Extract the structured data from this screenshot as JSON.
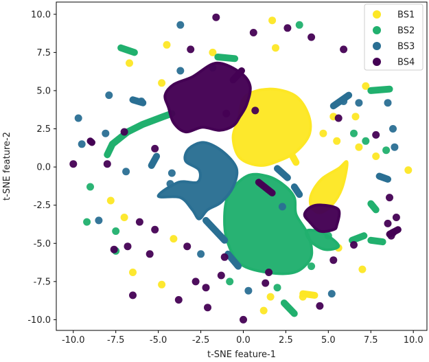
{
  "chart_data": {
    "type": "scatter",
    "title": "",
    "xlabel": "t-SNE feature-1",
    "ylabel": "t-SNE feature-2",
    "xlim": [
      -11.0,
      10.8
    ],
    "ylim": [
      -10.7,
      10.8
    ],
    "xticks": [
      "-10.0",
      "-7.5",
      "-5.0",
      "-2.5",
      "0.0",
      "2.5",
      "5.0",
      "7.5",
      "10.0"
    ],
    "xtick_values": [
      -10,
      -7.5,
      -5,
      -2.5,
      0,
      2.5,
      5,
      7.5,
      10
    ],
    "yticks": [
      "10.0",
      "7.5",
      "5.0",
      "2.5",
      "0.0",
      "-2.5",
      "-5.0",
      "-7.5",
      "-10.0"
    ],
    "ytick_values": [
      10,
      7.5,
      5,
      2.5,
      0,
      -2.5,
      -5,
      -7.5,
      -10
    ],
    "grid": false,
    "legend_position": "top-right",
    "series": [
      {
        "name": "BS1",
        "color": "#fde725",
        "blobs": [
          [
            [
              0.1,
              4.6
            ],
            [
              1.5,
              5.1
            ],
            [
              3.0,
              4.7
            ],
            [
              3.8,
              3.5
            ],
            [
              3.9,
              2.2
            ],
            [
              3.2,
              1.1
            ],
            [
              2.3,
              0.5
            ],
            [
              1.0,
              0.1
            ],
            [
              -0.2,
              0.6
            ],
            [
              -0.6,
              1.9
            ],
            [
              -0.3,
              3.1
            ]
          ],
          [
            [
              4.0,
              -1.8
            ],
            [
              4.6,
              -0.8
            ],
            [
              5.6,
              -0.1
            ],
            [
              6.1,
              0.3
            ],
            [
              5.8,
              -1.4
            ],
            [
              5.2,
              -2.5
            ],
            [
              4.5,
              -3.0
            ],
            [
              4.0,
              -2.6
            ]
          ]
        ],
        "points": [
          [
            1.7,
            9.6
          ],
          [
            -4.5,
            8.0
          ],
          [
            -1.8,
            7.5
          ],
          [
            1.9,
            7.8
          ],
          [
            -6.7,
            6.8
          ],
          [
            -4.8,
            5.5
          ],
          [
            7.2,
            5.3
          ],
          [
            6.6,
            3.3
          ],
          [
            5.3,
            3.3
          ],
          [
            4.7,
            2.2
          ],
          [
            5.5,
            1.7
          ],
          [
            6.8,
            1.3
          ],
          [
            7.8,
            0.7
          ],
          [
            9.7,
            -0.2
          ],
          [
            -7.0,
            -3.3
          ],
          [
            -4.1,
            -4.7
          ],
          [
            -6.5,
            -6.9
          ],
          [
            -4.8,
            -7.7
          ],
          [
            1.6,
            -8.5
          ],
          [
            3.5,
            -8.5
          ],
          [
            1.2,
            -9.4
          ],
          [
            5.6,
            -5.3
          ],
          [
            7.0,
            -6.7
          ],
          [
            -7.8,
            -2.2
          ]
        ],
        "strokes": [
          [
            [
              2.9,
              0.7
            ],
            [
              3.1,
              0.3
            ]
          ],
          [
            [
              3.5,
              -8.3
            ],
            [
              4.2,
              -8.4
            ]
          ]
        ]
      },
      {
        "name": "BS2",
        "color": "#21b06e",
        "blobs": [
          [
            [
              -0.9,
              -1.9
            ],
            [
              0.2,
              -0.6
            ],
            [
              1.4,
              -0.6
            ],
            [
              2.4,
              -1.2
            ],
            [
              3.0,
              -2.0
            ],
            [
              3.1,
              -3.1
            ],
            [
              3.7,
              -4.2
            ],
            [
              4.0,
              -5.2
            ],
            [
              3.9,
              -6.1
            ],
            [
              3.0,
              -6.9
            ],
            [
              1.4,
              -6.9
            ],
            [
              -0.1,
              -6.4
            ],
            [
              -0.8,
              -5.3
            ],
            [
              -1.1,
              -3.8
            ]
          ],
          [
            [
              3.7,
              -4.2
            ],
            [
              4.0,
              -4.9
            ],
            [
              4.8,
              -5.4
            ],
            [
              5.6,
              -5.2
            ],
            [
              5.1,
              -4.6
            ],
            [
              4.4,
              -4.2
            ]
          ]
        ],
        "points": [
          [
            3.3,
            9.3
          ],
          [
            6.5,
            2.2
          ],
          [
            7.2,
            1.7
          ],
          [
            -9.0,
            -1.3
          ],
          [
            -9.2,
            -3.6
          ],
          [
            -7.5,
            -4.2
          ],
          [
            -7.5,
            -5.5
          ],
          [
            4.0,
            -6.5
          ],
          [
            -0.8,
            -7.5
          ],
          [
            2.0,
            -7.9
          ],
          [
            5.0,
            -4.5
          ],
          [
            8.4,
            1.1
          ]
        ],
        "strokes": [
          [
            [
              -8.0,
              0.8
            ],
            [
              -7.7,
              1.5
            ],
            [
              -6.8,
              2.3
            ],
            [
              -5.9,
              2.8
            ],
            [
              -4.7,
              3.3
            ],
            [
              -4.2,
              3.5
            ]
          ],
          [
            [
              -1.5,
              7.2
            ],
            [
              -0.5,
              7.1
            ]
          ],
          [
            [
              -7.2,
              7.8
            ],
            [
              -6.4,
              7.5
            ]
          ],
          [
            [
              7.5,
              5.0
            ],
            [
              8.6,
              5.1
            ]
          ],
          [
            [
              2.4,
              -8.9
            ],
            [
              3.0,
              -9.6
            ]
          ],
          [
            [
              7.5,
              -2.4
            ],
            [
              7.8,
              -2.8
            ]
          ],
          [
            [
              6.4,
              -4.8
            ],
            [
              7.1,
              -4.5
            ]
          ],
          [
            [
              7.5,
              -4.8
            ],
            [
              8.2,
              -4.9
            ]
          ]
        ]
      },
      {
        "name": "BS3",
        "color": "#2a6f93",
        "blobs": [
          [
            [
              -3.2,
              1.2
            ],
            [
              -2.3,
              1.6
            ],
            [
              -1.2,
              1.0
            ],
            [
              -0.4,
              -0.1
            ],
            [
              -0.6,
              -1.3
            ],
            [
              -1.3,
              -2.3
            ],
            [
              -2.1,
              -2.8
            ],
            [
              -2.6,
              -3.4
            ],
            [
              -3.0,
              -2.8
            ],
            [
              -3.7,
              -2.0
            ],
            [
              -5.0,
              -1.9
            ],
            [
              -3.8,
              -1.0
            ],
            [
              -2.7,
              -1.0
            ],
            [
              -2.6,
              -0.2
            ],
            [
              -3.4,
              0.4
            ]
          ]
        ],
        "points": [
          [
            -3.7,
            9.3
          ],
          [
            -1.8,
            6.5
          ],
          [
            -3.7,
            6.3
          ],
          [
            -7.9,
            4.7
          ],
          [
            -9.7,
            3.2
          ],
          [
            -9.5,
            1.5
          ],
          [
            -8.1,
            2.2
          ],
          [
            -6.0,
            4.3
          ],
          [
            5.9,
            4.3
          ],
          [
            6.8,
            4.2
          ],
          [
            8.5,
            4.2
          ],
          [
            8.8,
            2.5
          ],
          [
            8.9,
            1.3
          ],
          [
            -6.9,
            -0.3
          ],
          [
            -8.5,
            -3.5
          ],
          [
            -4.3,
            -1.1
          ],
          [
            -2.5,
            -5.7
          ],
          [
            5.2,
            -8.3
          ],
          [
            -4.2,
            -0.4
          ],
          [
            2.3,
            -2.6
          ],
          [
            0.3,
            -8.1
          ]
        ],
        "strokes": [
          [
            [
              -6.5,
              4.4
            ],
            [
              -5.9,
              4.2
            ]
          ],
          [
            [
              2.0,
              -0.1
            ],
            [
              2.6,
              -0.7
            ]
          ],
          [
            [
              3.0,
              -1.3
            ],
            [
              3.3,
              -1.8
            ]
          ],
          [
            [
              5.3,
              4.0
            ],
            [
              6.2,
              4.7
            ]
          ],
          [
            [
              -2.2,
              -3.5
            ],
            [
              -1.1,
              -4.8
            ]
          ],
          [
            [
              -0.9,
              -5.7
            ],
            [
              -0.3,
              -6.5
            ]
          ],
          [
            [
              -5.4,
              0.1
            ],
            [
              -5.1,
              0.7
            ]
          ],
          [
            [
              8.0,
              -0.6
            ],
            [
              8.5,
              -0.8
            ]
          ]
        ]
      },
      {
        "name": "BS4",
        "color": "#440154",
        "blobs": [
          [
            [
              -4.6,
              4.7
            ],
            [
              -4.1,
              5.4
            ],
            [
              -3.0,
              5.9
            ],
            [
              -1.6,
              6.8
            ],
            [
              -0.2,
              6.2
            ],
            [
              0.4,
              5.3
            ],
            [
              0.2,
              4.1
            ],
            [
              -0.2,
              3.3
            ],
            [
              -0.6,
              2.7
            ],
            [
              -1.4,
              2.4
            ],
            [
              -2.4,
              2.6
            ],
            [
              -3.4,
              2.3
            ],
            [
              -4.1,
              2.9
            ],
            [
              -4.4,
              3.9
            ]
          ],
          [
            [
              4.0,
              -2.6
            ],
            [
              4.7,
              -2.5
            ],
            [
              5.6,
              -2.8
            ],
            [
              5.5,
              -3.8
            ],
            [
              5.3,
              -4.1
            ],
            [
              4.5,
              -4.2
            ],
            [
              3.9,
              -3.6
            ],
            [
              3.6,
              -3.1
            ]
          ]
        ],
        "points": [
          [
            -1.6,
            9.8
          ],
          [
            0.6,
            8.8
          ],
          [
            -3.1,
            7.7
          ],
          [
            5.9,
            7.7
          ],
          [
            4.0,
            8.5
          ],
          [
            2.6,
            9.1
          ],
          [
            -8.0,
            0.2
          ],
          [
            -10.0,
            0.2
          ],
          [
            -5.2,
            1.2
          ],
          [
            -7.0,
            2.3
          ],
          [
            5.6,
            3.2
          ],
          [
            7.8,
            2.1
          ],
          [
            -6.1,
            -3.6
          ],
          [
            -5.2,
            -4.1
          ],
          [
            -5.5,
            -5.7
          ],
          [
            -7.6,
            -5.4
          ],
          [
            -6.8,
            -5.2
          ],
          [
            9.0,
            -3.3
          ],
          [
            8.6,
            -2.0
          ],
          [
            8.5,
            -3.7
          ],
          [
            8.8,
            -4.3
          ],
          [
            -3.3,
            -5.2
          ],
          [
            -2.8,
            -7.5
          ],
          [
            -1.3,
            -7.1
          ],
          [
            -3.8,
            -8.7
          ],
          [
            -2.2,
            -7.9
          ],
          [
            1.3,
            -7.6
          ],
          [
            -1.1,
            -5.9
          ],
          [
            -6.5,
            -8.4
          ],
          [
            0.0,
            -10.0
          ],
          [
            5.3,
            -6.1
          ],
          [
            6.5,
            -5.1
          ],
          [
            1.5,
            -6.9
          ],
          [
            4.5,
            -9.1
          ],
          [
            8.7,
            -4.5
          ],
          [
            -1.0,
            3.5
          ],
          [
            0.7,
            3.7
          ],
          [
            -2.1,
            -9.2
          ]
        ],
        "strokes": [
          [
            [
              -0.6,
              5.7
            ],
            [
              -0.1,
              6.3
            ]
          ],
          [
            [
              0.9,
              -1.0
            ],
            [
              1.7,
              -1.7
            ]
          ],
          [
            [
              -9.0,
              1.7
            ],
            [
              -8.9,
              1.6
            ]
          ],
          [
            [
              8.6,
              -4.4
            ],
            [
              9.1,
              -4.1
            ]
          ]
        ]
      }
    ]
  }
}
